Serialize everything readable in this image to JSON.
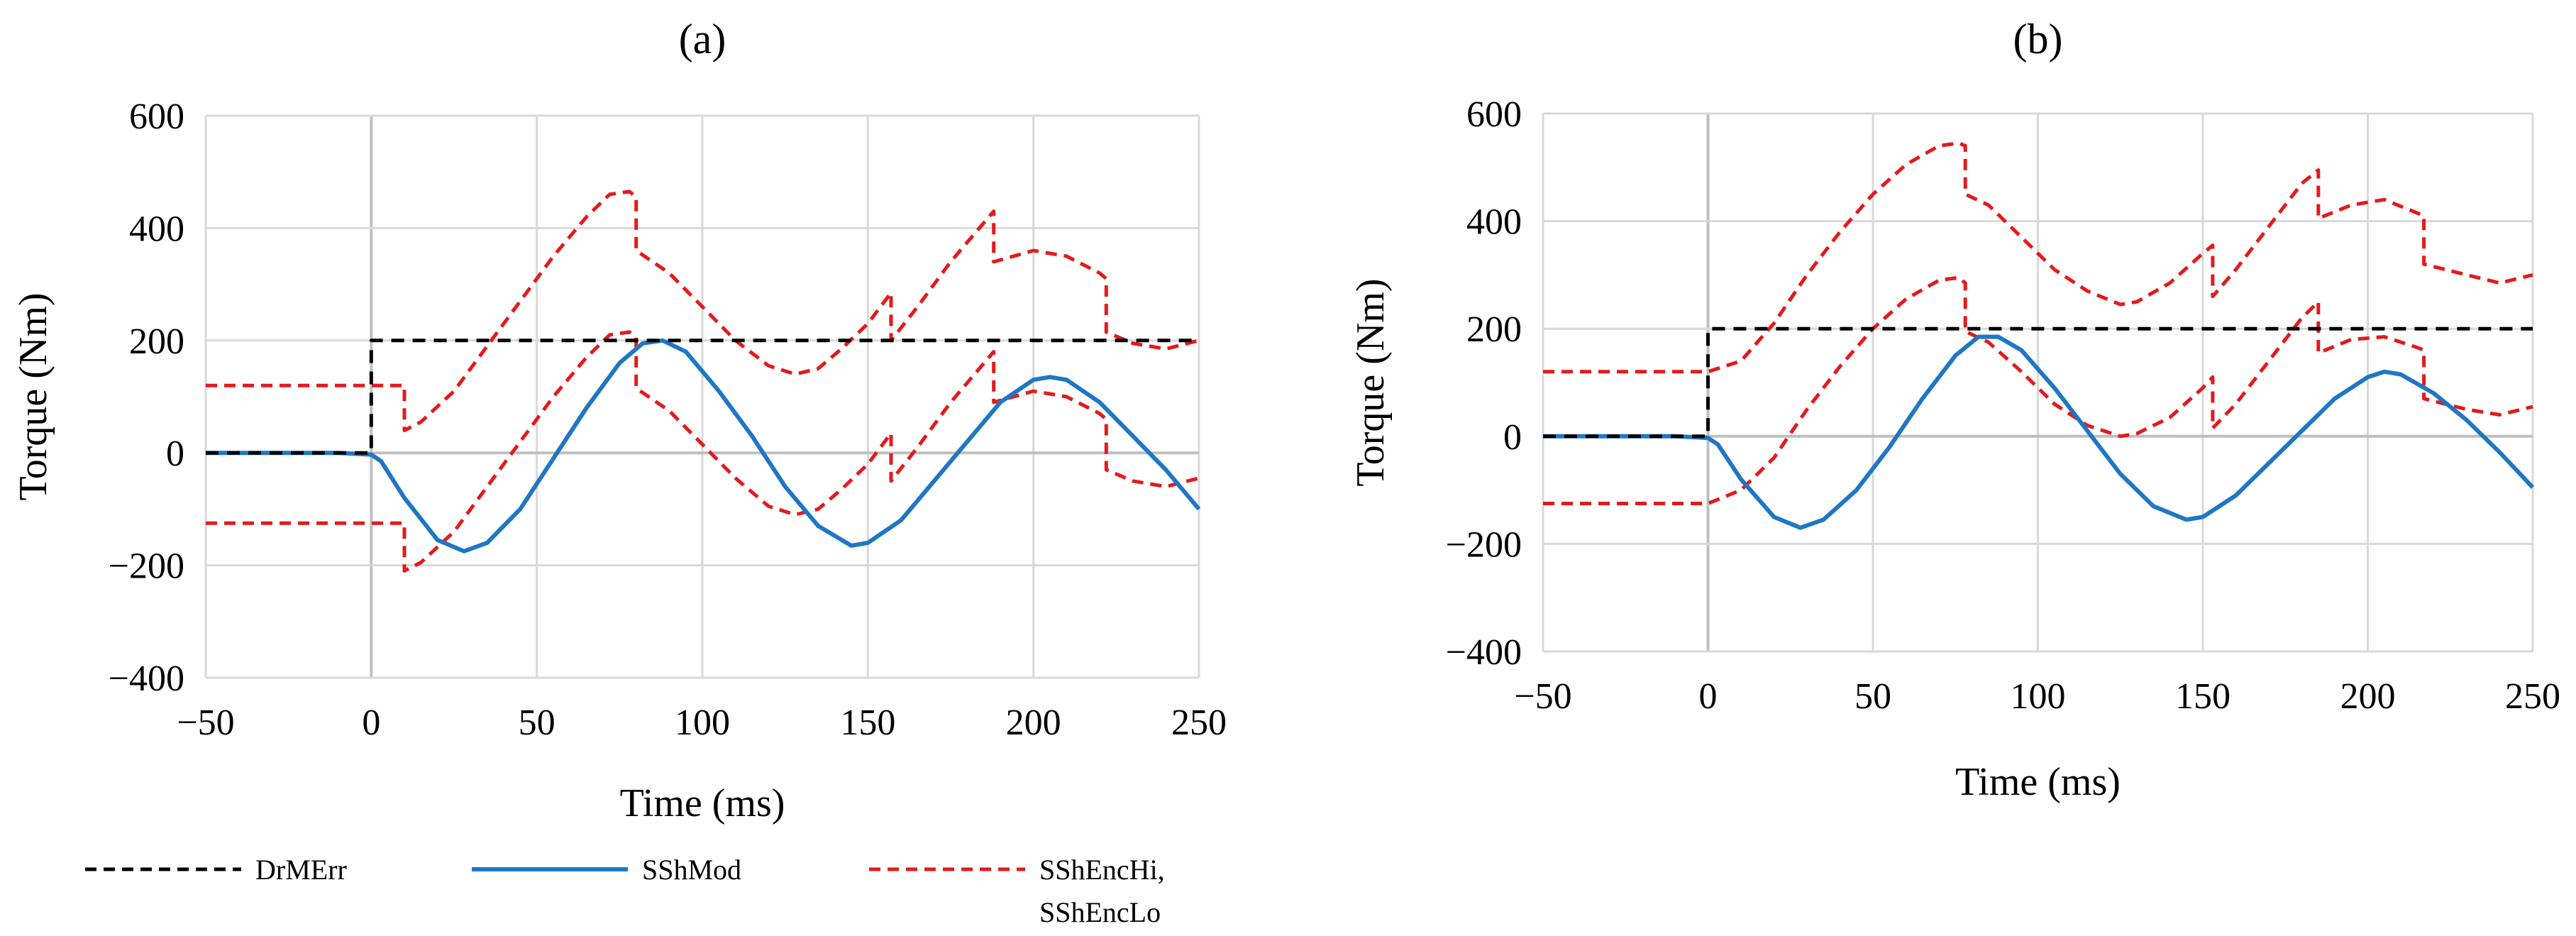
{
  "legend": {
    "items": [
      {
        "label": "DrMErr",
        "color": "#000000",
        "dash": "dashed"
      },
      {
        "label": "SShMod",
        "color": "#1f77c4",
        "dash": "solid"
      },
      {
        "label": "SShEncHi,",
        "label2": "SShEncLo",
        "color": "#e31a1c",
        "dash": "dashed"
      }
    ]
  },
  "chart_data": [
    {
      "type": "line",
      "title": "(a)",
      "xlabel": "Time (ms)",
      "ylabel": "Torque (Nm)",
      "xlim": [
        -50,
        250
      ],
      "ylim": [
        -400,
        600
      ],
      "xticks": [
        -50,
        0,
        50,
        100,
        150,
        200,
        250
      ],
      "yticks": [
        -400,
        -200,
        0,
        200,
        400,
        600
      ],
      "xtick_labels": [
        "−50",
        "0",
        "50",
        "100",
        "150",
        "200",
        "250"
      ],
      "ytick_labels": [
        "−400",
        "−200",
        "0",
        "200",
        "400",
        "600"
      ],
      "series": [
        {
          "name": "DrMErr",
          "color": "#000000",
          "dash": "dashed",
          "x": [
            -50,
            0,
            0,
            250
          ],
          "y": [
            0,
            0,
            200,
            200
          ]
        },
        {
          "name": "SShMod",
          "color": "#1f77c4",
          "dash": "solid",
          "x": [
            -50,
            -10,
            0,
            3,
            10,
            20,
            28,
            35,
            45,
            55,
            65,
            75,
            82,
            88,
            95,
            105,
            115,
            125,
            135,
            145,
            150,
            160,
            170,
            180,
            190,
            200,
            205,
            210,
            220,
            230,
            240,
            250
          ],
          "y": [
            0,
            0,
            -3,
            -15,
            -80,
            -155,
            -175,
            -160,
            -100,
            -10,
            80,
            160,
            195,
            200,
            180,
            110,
            30,
            -60,
            -130,
            -165,
            -160,
            -120,
            -50,
            20,
            90,
            130,
            135,
            130,
            90,
            30,
            -30,
            -100
          ]
        },
        {
          "name": "SShEncHi",
          "color": "#e31a1c",
          "dash": "dashed",
          "x": [
            -50,
            10,
            10,
            15,
            25,
            35,
            45,
            55,
            65,
            72,
            78,
            80,
            80,
            90,
            100,
            110,
            120,
            128,
            135,
            142,
            150,
            157,
            157,
            165,
            175,
            188,
            188,
            200,
            210,
            220,
            222,
            222,
            230,
            240,
            250
          ],
          "y": [
            120,
            120,
            40,
            55,
            110,
            190,
            270,
            350,
            420,
            460,
            465,
            455,
            360,
            320,
            260,
            200,
            155,
            140,
            150,
            185,
            230,
            285,
            200,
            260,
            340,
            430,
            340,
            360,
            350,
            320,
            310,
            215,
            195,
            185,
            200
          ]
        },
        {
          "name": "SShEncLo",
          "color": "#e31a1c",
          "dash": "dashed",
          "x": [
            -50,
            10,
            10,
            15,
            25,
            35,
            45,
            55,
            65,
            72,
            78,
            80,
            80,
            90,
            100,
            110,
            120,
            128,
            135,
            142,
            150,
            157,
            157,
            165,
            175,
            188,
            188,
            200,
            210,
            220,
            222,
            222,
            230,
            240,
            250
          ],
          "y": [
            -125,
            -125,
            -210,
            -195,
            -140,
            -60,
            20,
            100,
            170,
            210,
            215,
            205,
            115,
            75,
            15,
            -45,
            -95,
            -110,
            -100,
            -65,
            -20,
            35,
            -50,
            10,
            90,
            180,
            90,
            110,
            100,
            70,
            60,
            -30,
            -50,
            -60,
            -45
          ]
        }
      ]
    },
    {
      "type": "line",
      "title": "(b)",
      "xlabel": "Time (ms)",
      "ylabel": "Torque (Nm)",
      "xlim": [
        -50,
        250
      ],
      "ylim": [
        -400,
        600
      ],
      "xticks": [
        -50,
        0,
        50,
        100,
        150,
        200,
        250
      ],
      "yticks": [
        -400,
        -200,
        0,
        200,
        400,
        600
      ],
      "xtick_labels": [
        "−50",
        "0",
        "50",
        "100",
        "150",
        "200",
        "250"
      ],
      "ytick_labels": [
        "−400",
        "−200",
        "0",
        "200",
        "400",
        "600"
      ],
      "series": [
        {
          "name": "DrMErr",
          "color": "#000000",
          "dash": "dashed",
          "x": [
            -50,
            0,
            0,
            250
          ],
          "y": [
            0,
            0,
            200,
            200
          ]
        },
        {
          "name": "SShMod",
          "color": "#1f77c4",
          "dash": "solid",
          "x": [
            -50,
            -10,
            0,
            3,
            10,
            20,
            28,
            35,
            45,
            55,
            65,
            75,
            82,
            88,
            95,
            105,
            115,
            125,
            135,
            145,
            150,
            160,
            170,
            180,
            190,
            200,
            205,
            210,
            220,
            230,
            240,
            250
          ],
          "y": [
            0,
            0,
            -3,
            -15,
            -80,
            -150,
            -170,
            -155,
            -100,
            -20,
            70,
            150,
            185,
            185,
            160,
            90,
            10,
            -70,
            -130,
            -155,
            -150,
            -110,
            -50,
            10,
            70,
            110,
            120,
            115,
            80,
            30,
            -30,
            -95
          ]
        },
        {
          "name": "SShEncHi",
          "color": "#e31a1c",
          "dash": "dashed",
          "x": [
            -50,
            0,
            10,
            20,
            30,
            40,
            50,
            60,
            70,
            76,
            78,
            78,
            85,
            95,
            105,
            115,
            125,
            130,
            140,
            150,
            153,
            153,
            160,
            170,
            180,
            185,
            185,
            195,
            205,
            215,
            217,
            217,
            230,
            240,
            250
          ],
          "y": [
            120,
            120,
            140,
            210,
            300,
            380,
            450,
            505,
            540,
            545,
            540,
            450,
            430,
            370,
            310,
            270,
            245,
            250,
            285,
            340,
            355,
            260,
            310,
            390,
            470,
            495,
            405,
            430,
            440,
            415,
            410,
            320,
            300,
            285,
            300
          ]
        },
        {
          "name": "SShEncLo",
          "color": "#e31a1c",
          "dash": "dashed",
          "x": [
            -50,
            0,
            10,
            20,
            30,
            40,
            50,
            60,
            70,
            76,
            78,
            78,
            85,
            95,
            105,
            115,
            125,
            130,
            140,
            150,
            153,
            153,
            160,
            170,
            180,
            185,
            185,
            195,
            205,
            215,
            217,
            217,
            230,
            240,
            250
          ],
          "y": [
            -125,
            -125,
            -100,
            -40,
            50,
            130,
            200,
            255,
            290,
            295,
            285,
            195,
            175,
            120,
            60,
            20,
            0,
            5,
            35,
            90,
            110,
            15,
            60,
            140,
            220,
            250,
            155,
            180,
            185,
            165,
            160,
            70,
            50,
            40,
            55
          ]
        }
      ]
    }
  ]
}
